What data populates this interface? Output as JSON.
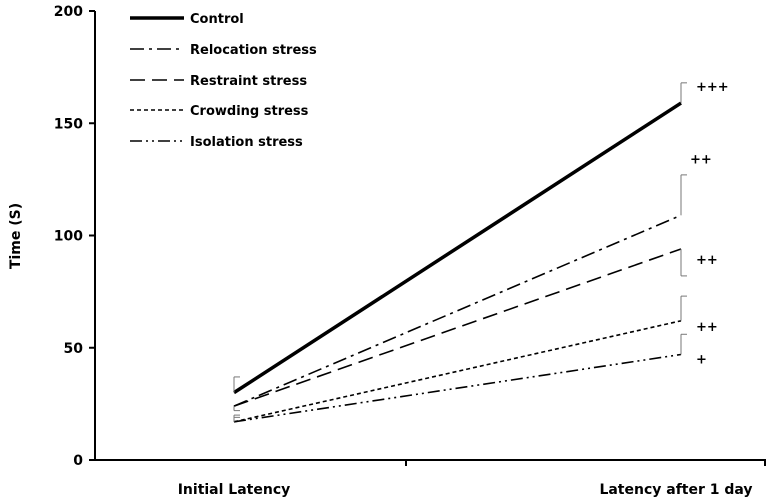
{
  "chart_data": {
    "type": "line",
    "title": "",
    "xlabel": "",
    "ylabel": "Time (S)",
    "ylim": [
      0,
      200
    ],
    "yticks": [
      0,
      50,
      100,
      150,
      200
    ],
    "categories": [
      "Initial Latency",
      "Latency after 1 day"
    ],
    "legend_position": "top-left",
    "series": [
      {
        "name": "Control",
        "values": [
          30,
          159
        ],
        "error_up": [
          7,
          9
        ],
        "error_down": [
          0,
          0
        ],
        "style": "solid",
        "significance": [
          "",
          "+++"
        ]
      },
      {
        "name": "Relocation stress",
        "values": [
          24,
          109
        ],
        "error_up": [
          0,
          18
        ],
        "error_down": [
          0,
          0
        ],
        "style": "dashdot",
        "significance": [
          "",
          "++"
        ]
      },
      {
        "name": "Restraint stress",
        "values": [
          24,
          94
        ],
        "error_up": [
          0,
          0
        ],
        "error_down": [
          2,
          12
        ],
        "style": "dashed",
        "significance": [
          "",
          "++"
        ]
      },
      {
        "name": "Crowding stress",
        "values": [
          17,
          62
        ],
        "error_up": [
          3,
          11
        ],
        "error_down": [
          0,
          0
        ],
        "style": "dotted",
        "significance": [
          "",
          "++"
        ]
      },
      {
        "name": "Isolation stress",
        "values": [
          17,
          47
        ],
        "error_up": [
          2,
          9
        ],
        "error_down": [
          0,
          0
        ],
        "style": "dashdotdot",
        "significance": [
          "",
          "+"
        ]
      }
    ]
  }
}
